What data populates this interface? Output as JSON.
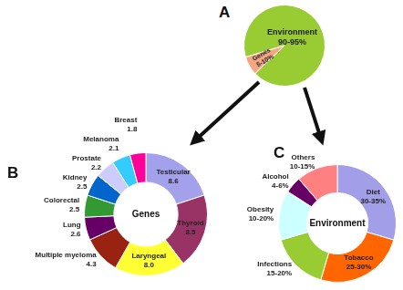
{
  "chart_data": [
    {
      "type": "pie",
      "title": "A",
      "categories": [
        "Environment",
        "Genes"
      ],
      "values": [
        92.5,
        7.5
      ],
      "value_labels": [
        "90-95%",
        "5-10%"
      ],
      "colors": [
        "#99cc33",
        "#f4a582"
      ],
      "data_labels": true
    },
    {
      "type": "doughnut",
      "title": "B",
      "annotation": "Genes",
      "categories": [
        "Testicular",
        "Thyroid",
        "Laryngeal",
        "Multiple myeloma",
        "Lung",
        "Colorectal",
        "Kidney",
        "Prostate",
        "Melanoma",
        "Breast"
      ],
      "values": [
        8.6,
        8.5,
        8.0,
        4.3,
        2.6,
        2.5,
        2.5,
        2.2,
        2.1,
        1.8
      ],
      "value_labels": [
        "8.6",
        "8.5",
        "8.0",
        "4.3",
        "2.6",
        "2.5",
        "2.5",
        "2.2",
        "2.1",
        "1.8"
      ],
      "colors": [
        "#a3a0ec",
        "#993366",
        "#ffff33",
        "#992211",
        "#660066",
        "#339933",
        "#0066cc",
        "#ccccff",
        "#33ccff",
        "#ff0099"
      ],
      "data_labels": true
    },
    {
      "type": "doughnut",
      "title": "C",
      "annotation": "Environment",
      "categories": [
        "Diet",
        "Tobacco",
        "Infections",
        "Obesity",
        "Alcohol",
        "Others"
      ],
      "values": [
        32.5,
        27.5,
        17.5,
        15,
        5,
        12.5
      ],
      "value_labels": [
        "30-35%",
        "25-30%",
        "15-20%",
        "10-20%",
        "4-6%",
        "10-15%"
      ],
      "colors": [
        "#a39ee8",
        "#ff6600",
        "#99cc33",
        "#ccffff",
        "#660066",
        "#ff8080"
      ],
      "data_labels": true
    }
  ]
}
